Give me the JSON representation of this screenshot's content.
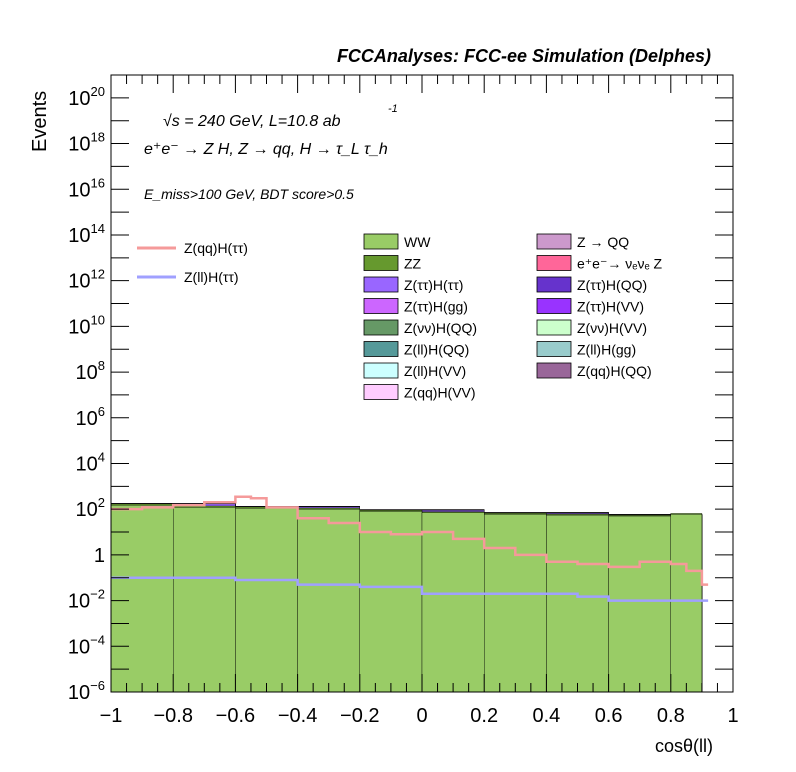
{
  "header": "FCCAnalyses: FCC-ee Simulation (Delphes)",
  "annotations": {
    "energy": "√s = 240 GeV, L=10.8 ab",
    "energy_exp": "-1",
    "process": "e⁺e⁻ → Z H, Z → qq, H → τ_L τ_h",
    "selection": "E_miss>100 GeV, BDT score>0.5"
  },
  "chart_data": {
    "type": "histogram-stack",
    "xlabel": "cosθ(ll)",
    "ylabel": "Events",
    "xlim": [
      -1,
      1
    ],
    "ylim": [
      1e-06,
      1e+21
    ],
    "yscale": "log",
    "xticks": [
      "−1",
      "−0.8",
      "−0.6",
      "−0.4",
      "−0.2",
      "0",
      "0.2",
      "0.4",
      "0.6",
      "0.8",
      "1"
    ],
    "yticks": [
      {
        "base": "10",
        "exp": "−6"
      },
      {
        "base": "10",
        "exp": "−4"
      },
      {
        "base": "10",
        "exp": "−2"
      },
      {
        "base": "1",
        "exp": ""
      },
      {
        "base": "10",
        "exp": "2"
      },
      {
        "base": "10",
        "exp": "4"
      },
      {
        "base": "10",
        "exp": "6"
      },
      {
        "base": "10",
        "exp": "8"
      },
      {
        "base": "10",
        "exp": "10"
      },
      {
        "base": "10",
        "exp": "12"
      },
      {
        "base": "10",
        "exp": "14"
      },
      {
        "base": "10",
        "exp": "16"
      },
      {
        "base": "10",
        "exp": "18"
      },
      {
        "base": "10",
        "exp": "20"
      }
    ],
    "signals": [
      {
        "name": "Z(qq)H(ττ)",
        "color": "#f59a9a",
        "x": [
          -1.0,
          -0.9,
          -0.8,
          -0.7,
          -0.6,
          -0.55,
          -0.5,
          -0.4,
          -0.3,
          -0.2,
          -0.1,
          0.0,
          0.1,
          0.2,
          0.3,
          0.4,
          0.5,
          0.6,
          0.7,
          0.8,
          0.85,
          0.9
        ],
        "y": [
          100,
          120,
          150,
          200,
          350,
          300,
          120,
          40,
          25,
          10,
          8,
          10,
          5,
          2,
          1,
          0.5,
          0.4,
          0.3,
          0.5,
          0.4,
          0.2,
          0.05
        ]
      },
      {
        "name": "Z(ll)H(ττ)",
        "color": "#a0a0ff",
        "x": [
          -1.0,
          -0.8,
          -0.6,
          -0.4,
          -0.2,
          0.0,
          0.2,
          0.4,
          0.5,
          0.6,
          0.7,
          0.8,
          0.9
        ],
        "y": [
          0.1,
          0.1,
          0.08,
          0.05,
          0.04,
          0.02,
          0.02,
          0.02,
          0.015,
          0.01,
          0.01,
          0.01,
          0.01
        ]
      }
    ],
    "stack": [
      {
        "name": "WW",
        "color": "#99cc66",
        "x": [
          -1.0,
          -0.8,
          -0.6,
          -0.4,
          -0.2,
          0.0,
          0.2,
          0.4,
          0.6,
          0.8,
          0.9
        ],
        "y": [
          150,
          120,
          110,
          100,
          80,
          70,
          60,
          55,
          50,
          60,
          50
        ]
      },
      {
        "name": "ZZ",
        "color": "#66992e",
        "x": [
          -1.0,
          -0.8,
          -0.6,
          -0.4,
          -0.2,
          0.0,
          0.2,
          0.4,
          0.6,
          0.8,
          0.9
        ],
        "y": [
          20,
          18,
          15,
          12,
          10,
          8,
          7,
          6,
          5,
          5,
          4
        ]
      },
      {
        "name": "Z(ττ)H(ττ)",
        "color": "#9966ff",
        "x": [
          -1.0,
          -0.6,
          -0.2,
          0.2,
          0.6,
          0.9
        ],
        "y": [
          0.1,
          0.05,
          0.05,
          0.02,
          0.02,
          0.01
        ]
      },
      {
        "name": "Z(ττ)H(gg)",
        "color": "#cc66ff",
        "x": [
          -1.0,
          -0.6,
          -0.2,
          0.2,
          0.6,
          0.9
        ],
        "y": [
          0.02,
          0.02,
          0.01,
          0.01,
          0.01,
          0.005
        ]
      },
      {
        "name": "Z(νν)H(QQ)",
        "color": "#669966",
        "x": [
          -1.0,
          -0.6,
          -0.2,
          0.2,
          0.6,
          0.9
        ],
        "y": [
          0.5,
          0.4,
          0.3,
          0.2,
          0.2,
          0.1
        ]
      },
      {
        "name": "Z(ll)H(QQ)",
        "color": "#559999",
        "x": [
          -1.0,
          -0.6,
          -0.2,
          0.2,
          0.6,
          0.9
        ],
        "y": [
          0.05,
          0.04,
          0.03,
          0.02,
          0.02,
          0.01
        ]
      },
      {
        "name": "Z(ll)H(VV)",
        "color": "#ccffff",
        "x": [
          -1.0,
          -0.6,
          -0.2,
          0.2,
          0.6,
          0.9
        ],
        "y": [
          0.02,
          0.02,
          0.02,
          0.02,
          0.02,
          0.01
        ]
      },
      {
        "name": "Z(qq)H(VV)",
        "color": "#ffccff",
        "x": [
          -1.0,
          -0.6,
          -0.2,
          0.2,
          0.6,
          0.9
        ],
        "y": [
          3,
          2,
          1.5,
          1,
          0.8,
          0.5
        ]
      },
      {
        "name": "Z → QQ",
        "color": "#cc99cc",
        "x": [
          -1.0,
          -0.6,
          -0.2,
          0.2,
          0.6,
          0.9
        ],
        "y": [
          1,
          1,
          1,
          1,
          1,
          1
        ]
      },
      {
        "name": "e⁺e⁻→ νₑνₑ Z",
        "color": "#ff6699",
        "x": [
          -1.0,
          -0.6,
          -0.2,
          0.2,
          0.6,
          0.9
        ],
        "y": [
          0.01,
          0.01,
          0.01,
          0.01,
          0.01,
          0.01
        ]
      },
      {
        "name": "Z(ττ)H(QQ)",
        "color": "#6633cc",
        "x": [
          -1.0,
          -0.6,
          -0.2,
          0.2,
          0.6,
          0.9
        ],
        "y": [
          3,
          2,
          1.5,
          1,
          0.8,
          0.5
        ]
      },
      {
        "name": "Z(ττ)H(VV)",
        "color": "#9933ff",
        "x": [
          -1.0,
          -0.6,
          -0.2,
          0.2,
          0.6,
          0.9
        ],
        "y": [
          2,
          1.5,
          1,
          0.8,
          0.5,
          0.3
        ]
      },
      {
        "name": "Z(νν)H(VV)",
        "color": "#ccffcc",
        "x": [
          -1.0,
          -0.6,
          -0.2,
          0.2,
          0.6,
          0.9
        ],
        "y": [
          0.3,
          0.3,
          0.2,
          0.2,
          0.2,
          0.1
        ]
      },
      {
        "name": "Z(ll)H(gg)",
        "color": "#99cccc",
        "x": [
          -1.0,
          -0.6,
          -0.2,
          0.2,
          0.6,
          0.9
        ],
        "y": [
          0.01,
          0.01,
          0.01,
          0.01,
          0.01,
          0.01
        ]
      },
      {
        "name": "Z(qq)H(QQ)",
        "color": "#996699",
        "x": [
          -1.0,
          -0.6,
          -0.2,
          0.2,
          0.6,
          0.9
        ],
        "y": [
          0.1,
          0.1,
          0.1,
          0.1,
          0.1,
          0.1
        ]
      }
    ]
  }
}
